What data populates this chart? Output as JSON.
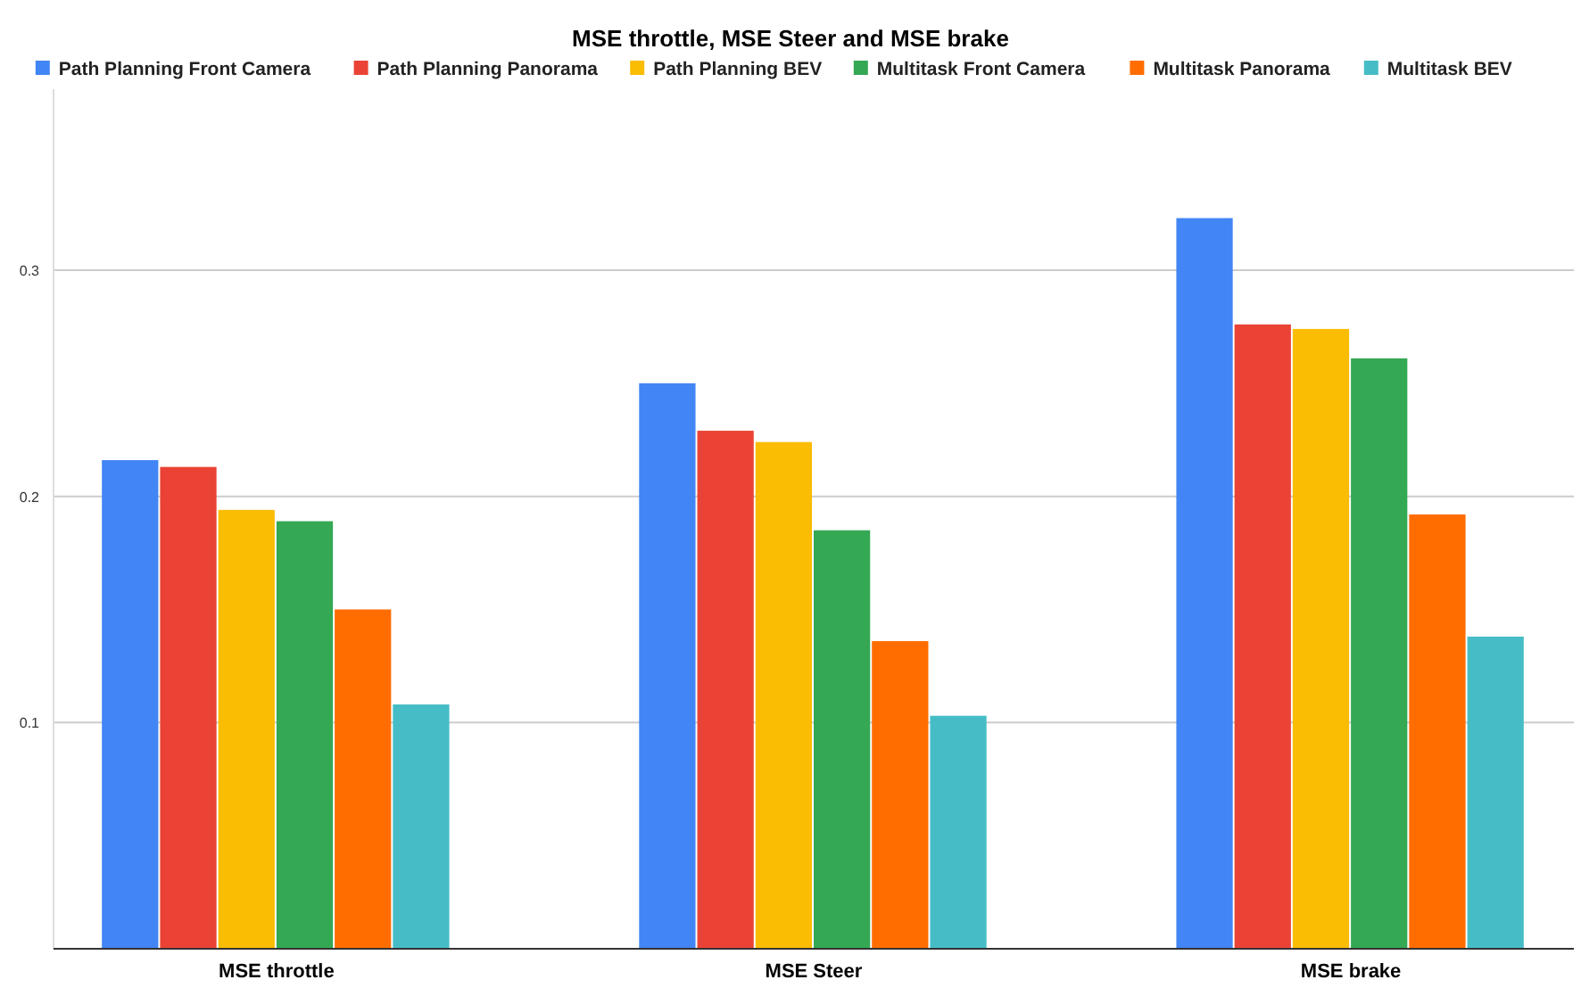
{
  "chart_data": {
    "type": "bar",
    "title": "MSE throttle, MSE Steer and MSE brake",
    "categories": [
      "MSE throttle",
      "MSE Steer",
      "MSE brake"
    ],
    "series": [
      {
        "name": "Path Planning Front Camera",
        "color": "#4285f4",
        "values": [
          0.216,
          0.25,
          0.323
        ]
      },
      {
        "name": "Path Planning Panorama",
        "color": "#ea4335",
        "values": [
          0.213,
          0.229,
          0.276
        ]
      },
      {
        "name": "Path Planning BEV",
        "color": "#fbbc04",
        "values": [
          0.194,
          0.224,
          0.274
        ]
      },
      {
        "name": "Multitask Front Camera",
        "color": "#34a853",
        "values": [
          0.189,
          0.185,
          0.261
        ]
      },
      {
        "name": "Multitask Panorama",
        "color": "#ff6d01",
        "values": [
          0.15,
          0.136,
          0.192
        ]
      },
      {
        "name": "Multitask BEV",
        "color": "#46bdc6",
        "values": [
          0.108,
          0.103,
          0.138
        ]
      }
    ],
    "ylim": [
      0,
      0.38
    ],
    "yticks": [
      0.1,
      0.2,
      0.3
    ],
    "grid": "y",
    "legend": "top"
  }
}
